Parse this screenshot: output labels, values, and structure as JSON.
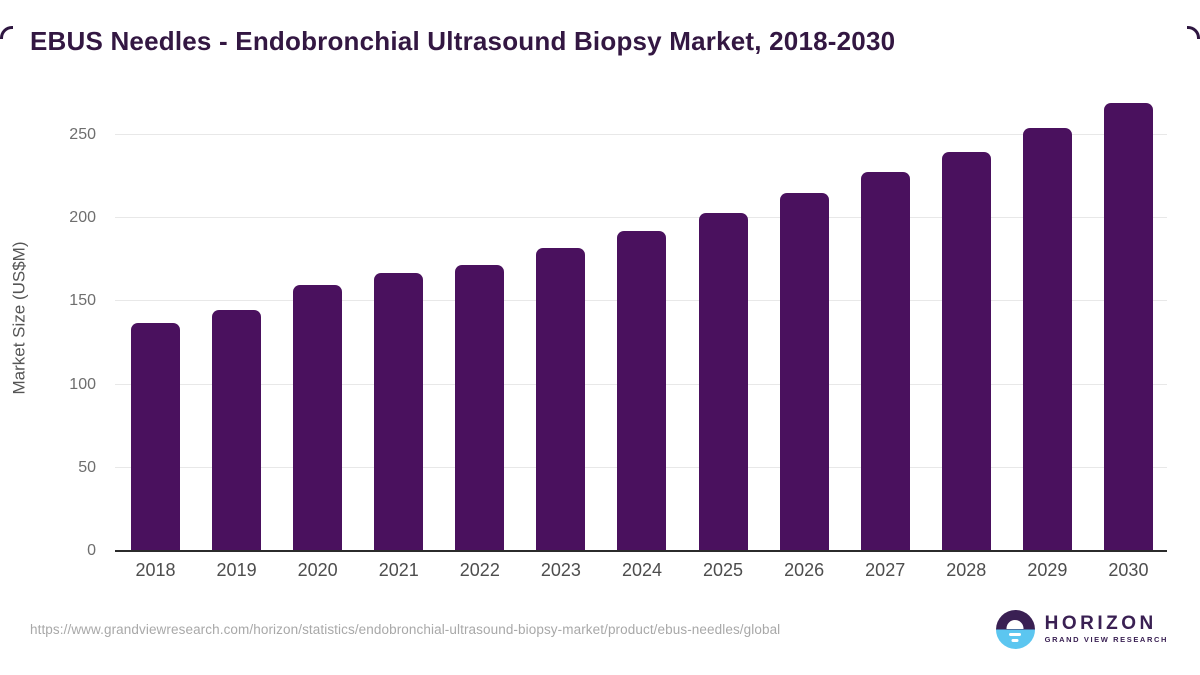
{
  "title": "EBUS Needles - Endobronchial Ultrasound Biopsy Market, 2018-2030",
  "chart_data": {
    "type": "bar",
    "categories": [
      "2018",
      "2019",
      "2020",
      "2021",
      "2022",
      "2023",
      "2024",
      "2025",
      "2026",
      "2027",
      "2028",
      "2029",
      "2030"
    ],
    "values": [
      137,
      145,
      160,
      167,
      172,
      182,
      192,
      203,
      215,
      228,
      240,
      254,
      269
    ],
    "title": "EBUS Needles - Endobronchial Ultrasound Biopsy Market, 2018-2030",
    "xlabel": "",
    "ylabel": "Market Size (US$M)",
    "ylim": [
      0,
      280
    ],
    "yticks": [
      0,
      50,
      100,
      150,
      200,
      250
    ],
    "grid": true,
    "legend": "none",
    "bar_color": "#4a115e"
  },
  "footer": {
    "source_url": "https://www.grandviewresearch.com/horizon/statistics/endobronchial-ultrasound-biopsy-market/product/ebus-needles/global",
    "brand": {
      "wordmark": "HORIZON",
      "tagline": "GRAND VIEW RESEARCH"
    }
  },
  "colors": {
    "bar": "#4a115e",
    "title": "#331742",
    "gridline": "#e8e8e8",
    "baseline": "#2b2b2b",
    "frame": "#2e1640",
    "logo_purple": "#3a2053",
    "logo_blue": "#5cc6f0"
  }
}
